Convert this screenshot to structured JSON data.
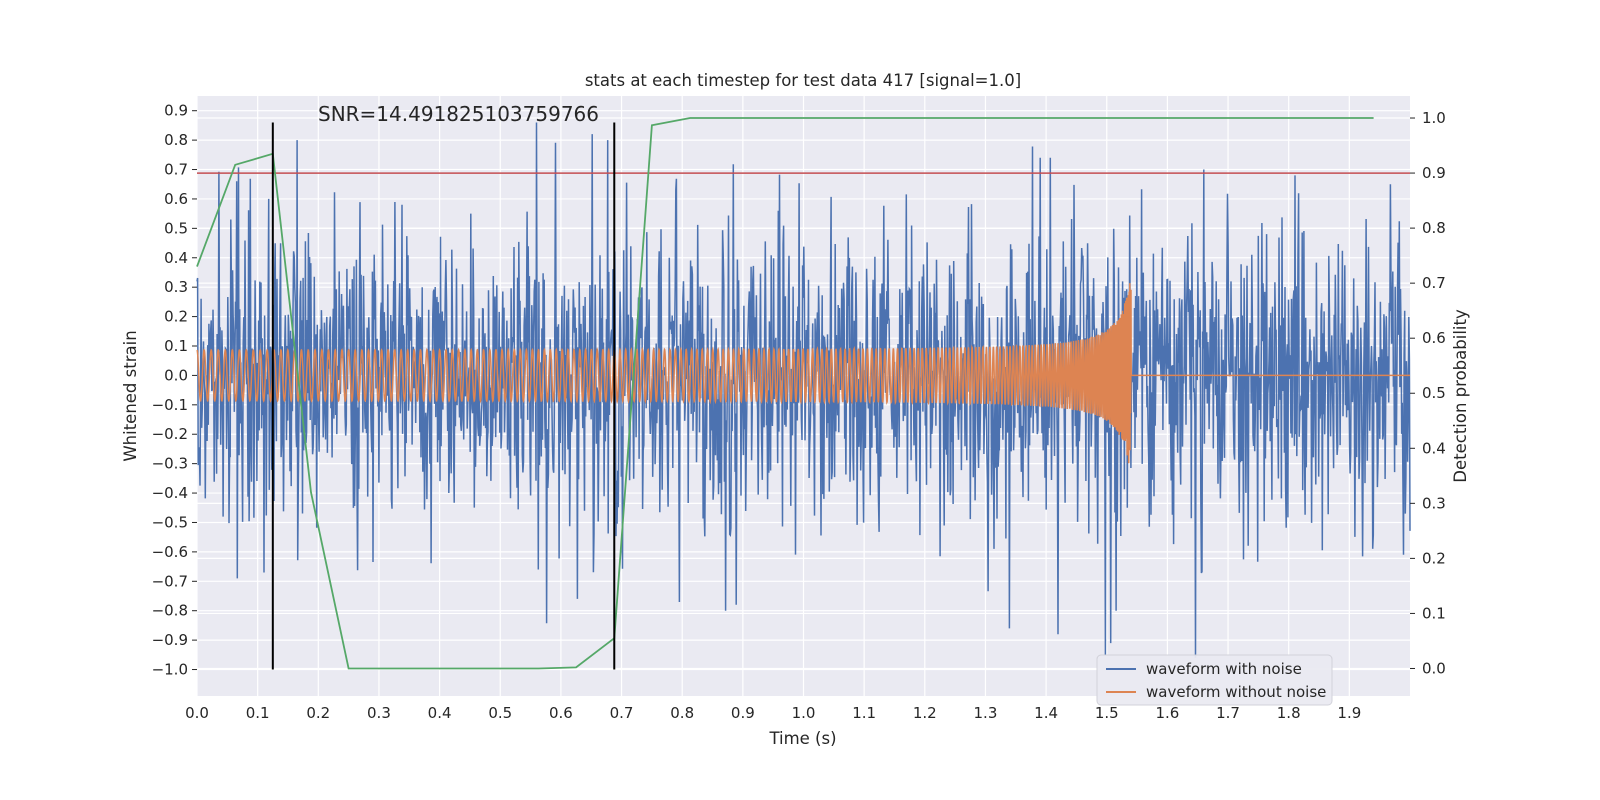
{
  "chart_data": {
    "type": "line",
    "title": "stats at each timestep for test data 417 [signal=1.0]",
    "xlabel": "Time (s)",
    "ylabel_left": "Whitened strain",
    "ylabel_right": "Detection probability",
    "annotation": "SNR=14.491825103759766",
    "xlim": [
      0.0,
      2.0
    ],
    "ylim_left": [
      -1.09,
      0.95
    ],
    "ylim_right": [
      -0.05,
      1.04
    ],
    "x_ticks": [
      "0.0",
      "0.1",
      "0.2",
      "0.3",
      "0.4",
      "0.5",
      "0.6",
      "0.7",
      "0.8",
      "0.9",
      "1.0",
      "1.1",
      "1.2",
      "1.3",
      "1.4",
      "1.5",
      "1.6",
      "1.7",
      "1.8",
      "1.9"
    ],
    "x_tick_values": [
      0.0,
      0.1,
      0.2,
      0.3,
      0.4,
      0.5,
      0.6,
      0.7,
      0.8,
      0.9,
      1.0,
      1.1,
      1.2,
      1.3,
      1.4,
      1.5,
      1.6,
      1.7,
      1.8,
      1.9
    ],
    "y_left_ticks": [
      "0.9",
      "0.8",
      "0.7",
      "0.6",
      "0.5",
      "0.4",
      "0.3",
      "0.2",
      "0.1",
      "0.0",
      "−0.1",
      "−0.2",
      "−0.3",
      "−0.4",
      "−0.5",
      "−0.6",
      "−0.7",
      "−0.8",
      "−0.9",
      "−1.0"
    ],
    "y_left_tick_values": [
      0.9,
      0.8,
      0.7,
      0.6,
      0.5,
      0.4,
      0.3,
      0.2,
      0.1,
      0.0,
      -0.1,
      -0.2,
      -0.3,
      -0.4,
      -0.5,
      -0.6,
      -0.7,
      -0.8,
      -0.9,
      -1.0
    ],
    "y_right_ticks": [
      "1.0",
      "0.9",
      "0.8",
      "0.7",
      "0.6",
      "0.5",
      "0.4",
      "0.3",
      "0.2",
      "0.1",
      "0.0"
    ],
    "y_right_tick_values": [
      1.0,
      0.9,
      0.8,
      0.7,
      0.6,
      0.5,
      0.4,
      0.3,
      0.2,
      0.1,
      0.0
    ],
    "threshold": {
      "axis": "right",
      "value": 0.9,
      "color": "#c44e52"
    },
    "vertical_markers": [
      {
        "x": 0.125,
        "y_from": -1.0,
        "y_to": 0.86
      },
      {
        "x": 0.688,
        "y_from": -1.0,
        "y_to": 0.86
      }
    ],
    "series": [
      {
        "name": "waveform with noise",
        "axis": "left",
        "color": "#4c72b0",
        "description_kind": "noisy",
        "seed": 417,
        "amplitude": 0.3,
        "x_range": [
          0.0,
          2.0
        ],
        "samples": 2048,
        "peaks": [
          {
            "x": 0.056,
            "y": 0.53
          },
          {
            "x": 0.066,
            "y": -0.69
          },
          {
            "x": 0.11,
            "y": -0.67
          },
          {
            "x": 0.118,
            "y": 0.6
          },
          {
            "x": 0.165,
            "y": 0.8
          },
          {
            "x": 0.56,
            "y": 0.86
          },
          {
            "x": 0.563,
            "y": -0.66
          },
          {
            "x": 0.627,
            "y": -0.76
          },
          {
            "x": 0.677,
            "y": 0.8
          },
          {
            "x": 0.872,
            "y": -0.8
          },
          {
            "x": 0.889,
            "y": -0.78
          },
          {
            "x": 1.34,
            "y": -0.86
          },
          {
            "x": 1.39,
            "y": 0.74
          },
          {
            "x": 1.407,
            "y": 0.74
          },
          {
            "x": 1.498,
            "y": -0.95
          },
          {
            "x": 1.507,
            "y": -0.91
          },
          {
            "x": 1.646,
            "y": -0.96
          },
          {
            "x": 1.66,
            "y": 0.7
          },
          {
            "x": 1.42,
            "y": -0.88
          },
          {
            "x": 1.515,
            "y": -0.8
          }
        ]
      },
      {
        "name": "waveform without noise",
        "axis": "left",
        "color": "#dd8452",
        "description_kind": "chirp",
        "t_merge": 1.54,
        "base_amplitude": 0.085,
        "peak_amplitude": 0.35,
        "post_merge_value": 0.0
      },
      {
        "name": "detection probability",
        "axis": "right",
        "color": "#55a868",
        "x": [
          0.0,
          0.063,
          0.125,
          0.188,
          0.25,
          0.313,
          0.375,
          0.438,
          0.5,
          0.563,
          0.625,
          0.688,
          0.75,
          0.813,
          0.875,
          0.938,
          1.0,
          1.25,
          1.5,
          1.75,
          1.94
        ],
        "values": [
          0.73,
          0.915,
          0.935,
          0.32,
          0.0,
          0.0,
          0.0,
          0.0,
          0.0,
          0.0,
          0.002,
          0.055,
          0.987,
          1.0,
          1.0,
          1.0,
          1.0,
          1.0,
          1.0,
          1.0,
          1.0
        ]
      }
    ],
    "legend": {
      "placement": "lower-right",
      "entries": [
        "waveform with noise",
        "waveform without noise"
      ]
    },
    "colors": {
      "plot_background": "#eaeaf2",
      "grid": "#ffffff",
      "text": "#262626",
      "marker": "#000000"
    }
  }
}
